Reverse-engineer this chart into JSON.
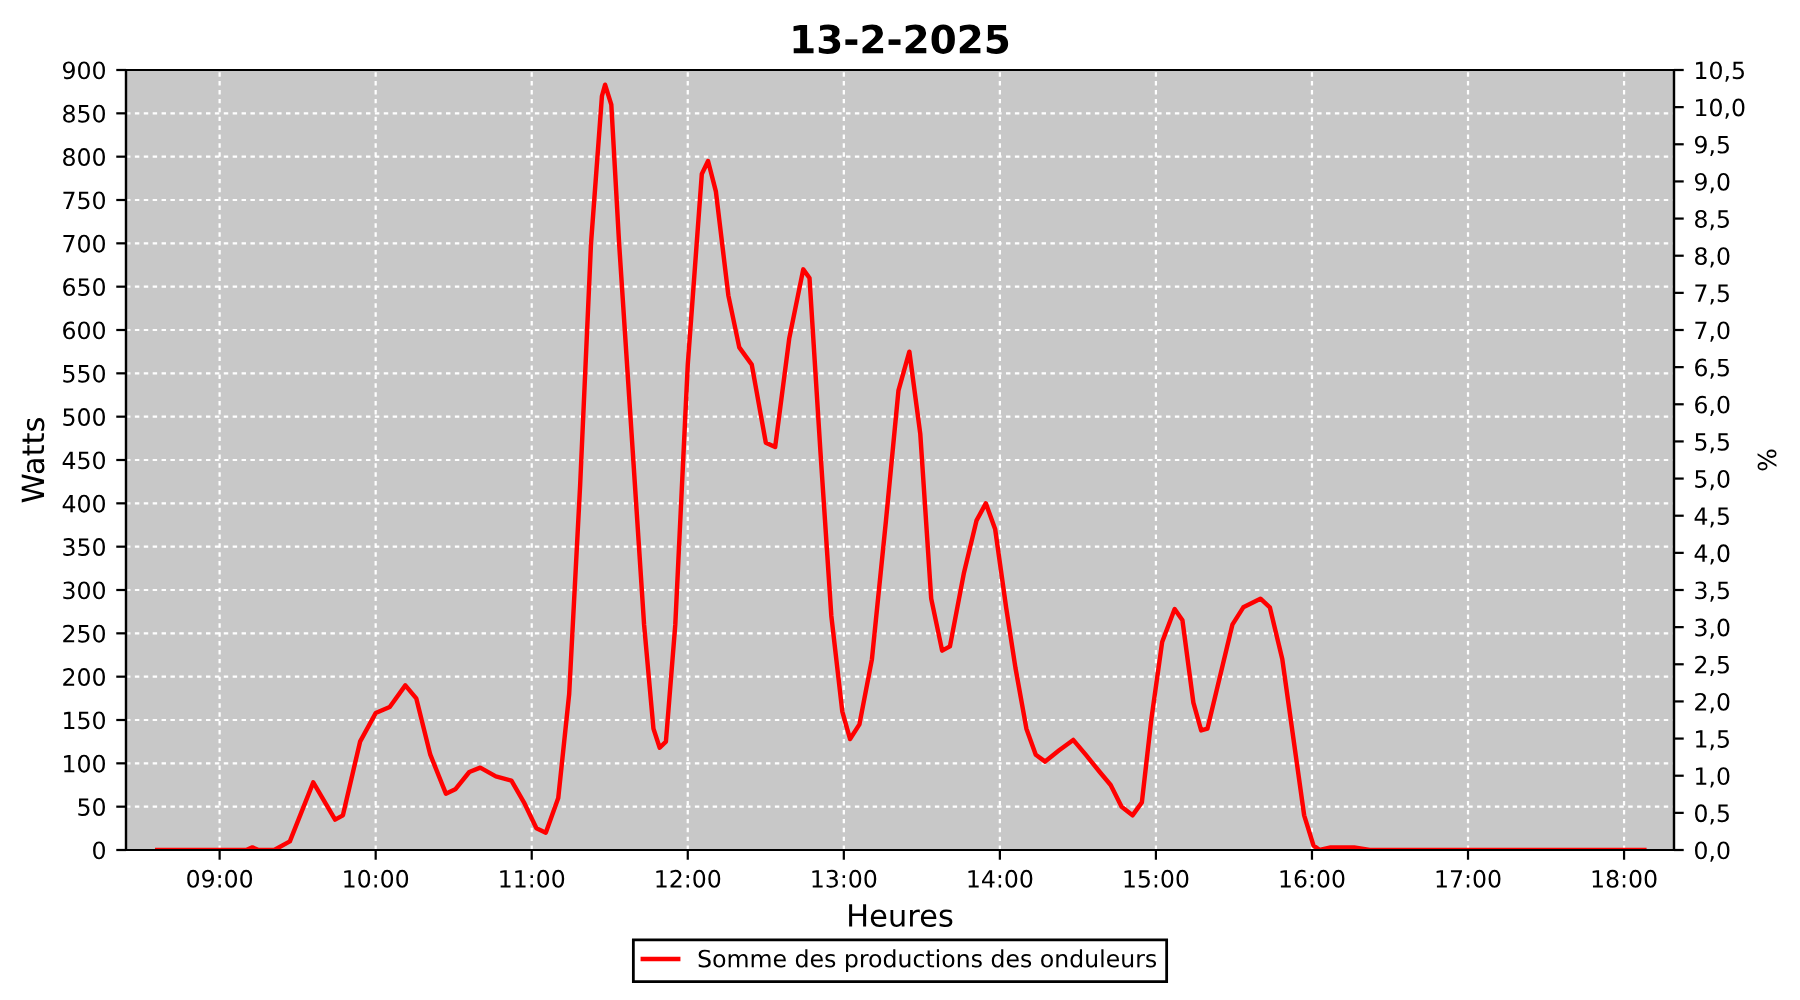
{
  "chart_data": {
    "type": "line",
    "title": "13-2-2025",
    "xlabel": "Heures",
    "ylabel": "Watts",
    "y2label": "%",
    "series": [
      {
        "name": "Somme des productions des onduleurs",
        "color": "#ff0000",
        "x": [
          8.6,
          9.17,
          9.21,
          9.25,
          9.35,
          9.45,
          9.6,
          9.74,
          9.79,
          9.9,
          10.0,
          10.09,
          10.19,
          10.26,
          10.35,
          10.45,
          10.51,
          10.6,
          10.67,
          10.77,
          10.87,
          10.95,
          11.03,
          11.09,
          11.17,
          11.24,
          11.31,
          11.38,
          11.45,
          11.47,
          11.51,
          11.56,
          11.64,
          11.72,
          11.78,
          11.82,
          11.86,
          11.92,
          12.0,
          12.09,
          12.13,
          12.18,
          12.26,
          12.33,
          12.41,
          12.5,
          12.56,
          12.65,
          12.74,
          12.78,
          12.85,
          12.92,
          12.99,
          13.04,
          13.1,
          13.18,
          13.27,
          13.35,
          13.42,
          13.49,
          13.56,
          13.63,
          13.68,
          13.77,
          13.85,
          13.91,
          13.97,
          14.04,
          14.1,
          14.17,
          14.23,
          14.29,
          14.38,
          14.47,
          14.55,
          14.64,
          14.71,
          14.78,
          14.85,
          14.91,
          14.97,
          15.04,
          15.12,
          15.17,
          15.24,
          15.29,
          15.33,
          15.41,
          15.49,
          15.56,
          15.67,
          15.73,
          15.81,
          15.88,
          15.95,
          16.01,
          16.05,
          16.12,
          16.27,
          16.37,
          18.13
        ],
        "values": [
          0,
          0,
          3,
          0,
          0,
          10,
          78,
          35,
          40,
          125,
          158,
          165,
          190,
          175,
          110,
          65,
          70,
          90,
          95,
          85,
          80,
          55,
          25,
          20,
          60,
          180,
          420,
          700,
          870,
          883,
          860,
          700,
          480,
          260,
          140,
          118,
          125,
          260,
          560,
          780,
          795,
          760,
          640,
          580,
          560,
          470,
          465,
          590,
          670,
          660,
          460,
          270,
          160,
          128,
          145,
          220,
          380,
          530,
          575,
          480,
          290,
          230,
          235,
          320,
          380,
          400,
          370,
          280,
          210,
          140,
          110,
          102,
          115,
          127,
          110,
          90,
          75,
          50,
          40,
          55,
          150,
          240,
          278,
          265,
          170,
          138,
          140,
          200,
          260,
          280,
          290,
          280,
          220,
          130,
          40,
          5,
          0,
          3,
          3,
          0,
          0
        ]
      }
    ],
    "xlim": [
      8.4,
      18.32
    ],
    "xticks": [
      {
        "value": 9,
        "label": "09:00"
      },
      {
        "value": 10,
        "label": "10:00"
      },
      {
        "value": 11,
        "label": "11:00"
      },
      {
        "value": 12,
        "label": "12:00"
      },
      {
        "value": 13,
        "label": "13:00"
      },
      {
        "value": 14,
        "label": "14:00"
      },
      {
        "value": 15,
        "label": "15:00"
      },
      {
        "value": 16,
        "label": "16:00"
      },
      {
        "value": 17,
        "label": "17:00"
      },
      {
        "value": 18,
        "label": "18:00"
      }
    ],
    "ylim": [
      0,
      900
    ],
    "yticks": [
      0,
      50,
      100,
      150,
      200,
      250,
      300,
      350,
      400,
      450,
      500,
      550,
      600,
      650,
      700,
      750,
      800,
      850,
      900
    ],
    "y2lim": [
      0,
      10.5
    ],
    "y2ticks": [
      {
        "value": 0,
        "label": "0,0"
      },
      {
        "value": 0.5,
        "label": "0,5"
      },
      {
        "value": 1,
        "label": "1,0"
      },
      {
        "value": 1.5,
        "label": "1,5"
      },
      {
        "value": 2,
        "label": "2,0"
      },
      {
        "value": 2.5,
        "label": "2,5"
      },
      {
        "value": 3,
        "label": "3,0"
      },
      {
        "value": 3.5,
        "label": "3,5"
      },
      {
        "value": 4,
        "label": "4,0"
      },
      {
        "value": 4.5,
        "label": "4,5"
      },
      {
        "value": 5,
        "label": "5,0"
      },
      {
        "value": 5.5,
        "label": "5,5"
      },
      {
        "value": 6,
        "label": "6,0"
      },
      {
        "value": 6.5,
        "label": "6,5"
      },
      {
        "value": 7,
        "label": "7,0"
      },
      {
        "value": 7.5,
        "label": "7,5"
      },
      {
        "value": 8,
        "label": "8,0"
      },
      {
        "value": 8.5,
        "label": "8,5"
      },
      {
        "value": 9,
        "label": "9,0"
      },
      {
        "value": 9.5,
        "label": "9,5"
      },
      {
        "value": 10,
        "label": "10,0"
      },
      {
        "value": 10.5,
        "label": "10,5"
      }
    ],
    "grid": true,
    "legend": "bottom",
    "marker": "none",
    "line_style": "solid"
  }
}
